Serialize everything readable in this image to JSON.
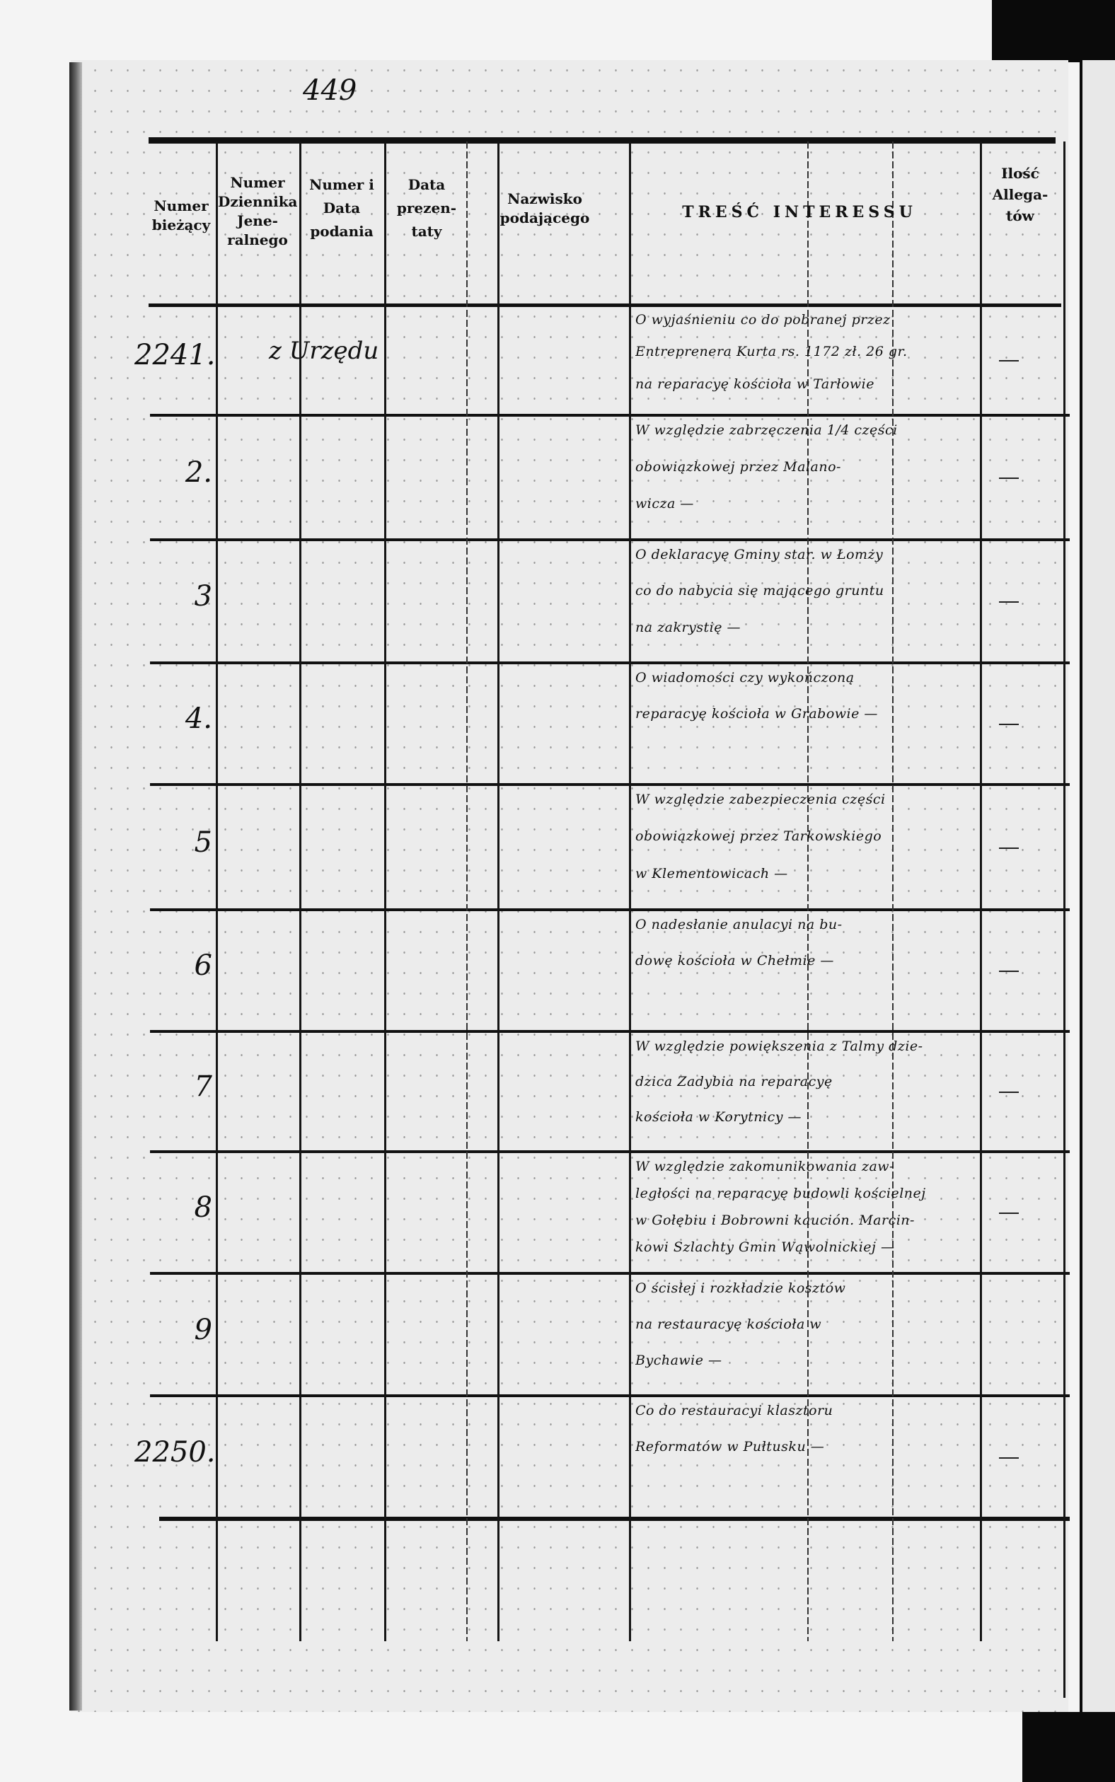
{
  "page_number": "449",
  "header": {
    "col_numer_biezacy": "Numer bieżący",
    "col_numer_dziennika": "Numer Dziennika Jene-ralnego",
    "col_numer_data_podania": "Numer i Data podania",
    "col_data_prezentaty": "Data prezen-taty",
    "col_nazwisko": "Nazwisko podającego",
    "col_tresc": "TREŚĆ INTERESSU",
    "col_ilosc": "Ilość Allega-tów"
  },
  "rows": [
    {
      "number": "2241.",
      "source": "z Urzędu",
      "content": [
        "O wyjaśnieniu co do pobranej przez",
        "Entreprenera Kurta rs. 1172 zł. 26 gr.",
        "na reparacyę kościoła w Tarłowie"
      ],
      "allegaty": "—"
    },
    {
      "number": "2.",
      "source": "",
      "content": [
        "W względzie zabrzęczenia 1/4 części",
        "obowiązkowej przez Malano-",
        "wicza —"
      ],
      "allegaty": "—"
    },
    {
      "number": "3",
      "source": "",
      "content": [
        "O deklaracyę Gminy star. w Łomży",
        "co do nabycia się mającego gruntu",
        "na zakrystię —"
      ],
      "allegaty": "—"
    },
    {
      "number": "4.",
      "source": "",
      "content": [
        "O wiadomości czy wykończoną",
        "reparacyę kościoła w Grabowie —"
      ],
      "allegaty": "—"
    },
    {
      "number": "5",
      "source": "",
      "content": [
        "W względzie zabezpieczenia części",
        "obowiązkowej przez Tarkowskiego",
        "w Klementowicach —"
      ],
      "allegaty": "—"
    },
    {
      "number": "6",
      "source": "",
      "content": [
        "O nadesłanie anulacyi na bu-",
        "dowę kościoła w Chełmie —"
      ],
      "allegaty": "—"
    },
    {
      "number": "7",
      "source": "",
      "content": [
        "W względzie powiększenia z Talmy dzie-",
        "dzica Zadybia na reparacyę",
        "kościoła w Korytnicy —"
      ],
      "allegaty": "—"
    },
    {
      "number": "8",
      "source": "",
      "content": [
        "W względzie zakomunikowania zaw-",
        "ległości na reparacyę budowli kościelnej",
        "w Gołębiu i Bobrowni kaución. Marcin-",
        "kowi Szlachty Gmin Wąwolnickiej —"
      ],
      "allegaty": "—"
    },
    {
      "number": "9",
      "source": "",
      "content": [
        "O ścisłej i rozkładzie kosztów",
        "na restauracyę kościoła w",
        "Bychawie —"
      ],
      "allegaty": ""
    },
    {
      "number": "2250.",
      "source": "",
      "content": [
        "Co do restauracyi klasztoru",
        "Reformatów w Pułtusku —"
      ],
      "allegaty": "—"
    }
  ]
}
